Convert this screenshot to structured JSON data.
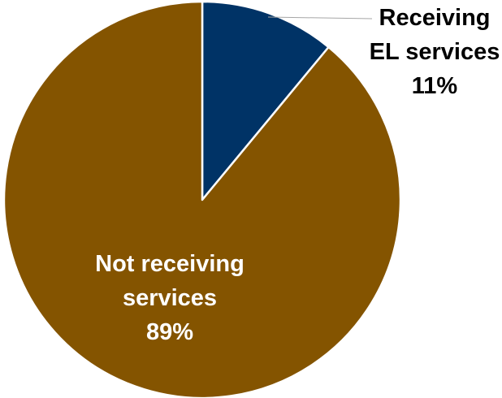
{
  "chart_data": {
    "type": "pie",
    "title": "",
    "slices": [
      {
        "label_lines": [
          "Receiving",
          "EL services"
        ],
        "value": 11,
        "value_label": "11%",
        "color": "#003366",
        "label_color": "#000000",
        "label_placement": "outside-with-leader"
      },
      {
        "label_lines": [
          "Not receiving",
          "services"
        ],
        "value": 89,
        "value_label": "89%",
        "color": "#845400",
        "label_color": "#ffffff",
        "label_placement": "inside"
      }
    ],
    "start_angle": "12 o'clock",
    "direction": "clockwise",
    "slice_border_color": "#ffffff",
    "leader_line_color": "#a6a6a6",
    "legend": "none"
  }
}
